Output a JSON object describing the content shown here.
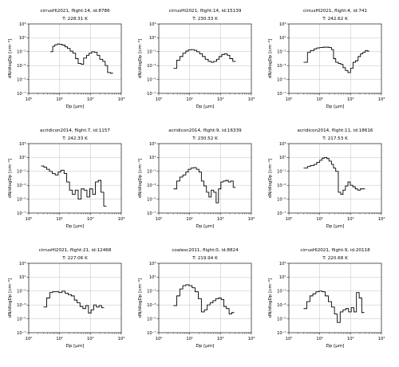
{
  "figure": {
    "panel_count": 9,
    "grid_layout": "3x3",
    "grid": true,
    "line_color": "#000000",
    "grid_color": "#b0b0b0"
  },
  "axes_common": {
    "xlabel": "Dp [μm]",
    "ylabel": "dN/dlogDp [cm⁻³]",
    "xscale": "log",
    "yscale": "log",
    "xlim": [
      1,
      1000
    ],
    "ylim": [
      1e-07,
      1000
    ],
    "xtick_labels": [
      "10⁰",
      "10¹",
      "10²",
      "10³"
    ],
    "ytick_labels": [
      "10⁻⁷",
      "10⁻⁵",
      "10⁻³",
      "10⁻¹",
      "10¹",
      "10³"
    ]
  },
  "chart_data": [
    {
      "type": "line",
      "title": "cirrusHl2021, flight:14, id:8786",
      "subtitle": "T: 228.31 K",
      "series": [
        {
          "values": [
            [
              5,
              0.1
            ],
            [
              6,
              0.6
            ],
            [
              7,
              1.0
            ],
            [
              8.5,
              1.3
            ],
            [
              10,
              1.2
            ],
            [
              12,
              0.9
            ],
            [
              15,
              0.5
            ],
            [
              18,
              0.3
            ],
            [
              22,
              0.12
            ],
            [
              27,
              0.06
            ],
            [
              33,
              0.01
            ],
            [
              40,
              0.002
            ],
            [
              50,
              0.0015
            ],
            [
              60,
              0.012
            ],
            [
              75,
              0.03
            ],
            [
              90,
              0.06
            ],
            [
              110,
              0.1
            ],
            [
              135,
              0.08
            ],
            [
              165,
              0.03
            ],
            [
              200,
              0.008
            ],
            [
              250,
              0.004
            ],
            [
              300,
              0.001
            ],
            [
              360,
              0.0001
            ],
            [
              440,
              8e-05
            ]
          ]
        }
      ]
    },
    {
      "type": "line",
      "title": "cirrusHl2021, flight:14, id:15139",
      "subtitle": "T: 230.33 K",
      "series": [
        {
          "values": [
            [
              3,
              0.0004
            ],
            [
              3.8,
              0.006
            ],
            [
              4.8,
              0.02
            ],
            [
              6,
              0.06
            ],
            [
              7.5,
              0.12
            ],
            [
              9,
              0.18
            ],
            [
              11,
              0.2
            ],
            [
              14,
              0.16
            ],
            [
              17,
              0.1
            ],
            [
              21,
              0.05
            ],
            [
              26,
              0.02
            ],
            [
              32,
              0.008
            ],
            [
              40,
              0.004
            ],
            [
              50,
              0.003
            ],
            [
              60,
              0.004
            ],
            [
              75,
              0.008
            ],
            [
              90,
              0.02
            ],
            [
              110,
              0.04
            ],
            [
              135,
              0.05
            ],
            [
              165,
              0.03
            ],
            [
              200,
              0.01
            ],
            [
              250,
              0.004
            ]
          ]
        }
      ]
    },
    {
      "type": "line",
      "title": "cirrusHl2021, flight:4, id:741",
      "subtitle": "T: 242.62 K",
      "series": [
        {
          "values": [
            [
              3,
              0.003
            ],
            [
              4,
              0.08
            ],
            [
              5,
              0.15
            ],
            [
              6.5,
              0.25
            ],
            [
              8,
              0.35
            ],
            [
              10,
              0.4
            ],
            [
              13,
              0.45
            ],
            [
              16,
              0.45
            ],
            [
              20,
              0.4
            ],
            [
              24,
              0.2
            ],
            [
              28,
              0.01
            ],
            [
              33,
              0.003
            ],
            [
              40,
              0.002
            ],
            [
              48,
              0.0015
            ],
            [
              57,
              0.0005
            ],
            [
              68,
              0.0002
            ],
            [
              82,
              0.0001
            ],
            [
              100,
              0.0004
            ],
            [
              120,
              0.003
            ],
            [
              145,
              0.005
            ],
            [
              175,
              0.02
            ],
            [
              210,
              0.05
            ],
            [
              250,
              0.08
            ],
            [
              300,
              0.15
            ],
            [
              350,
              0.12
            ]
          ]
        }
      ]
    },
    {
      "type": "line",
      "title": "acridicon2014, flight:7, id:1157",
      "subtitle": "T: 242.33 K",
      "series": [
        {
          "values": [
            [
              2.5,
              0.6
            ],
            [
              3.1,
              0.4
            ],
            [
              3.8,
              0.2
            ],
            [
              4.7,
              0.1
            ],
            [
              5.8,
              0.05
            ],
            [
              7.2,
              0.03
            ],
            [
              9,
              0.08
            ],
            [
              11,
              0.15
            ],
            [
              14,
              0.05
            ],
            [
              17,
              0.003
            ],
            [
              21,
              0.0002
            ],
            [
              26,
              5e-05
            ],
            [
              32,
              0.0002
            ],
            [
              40,
              1e-05
            ],
            [
              50,
              0.0003
            ],
            [
              62,
              0.0002
            ],
            [
              77,
              2e-05
            ],
            [
              95,
              0.0003
            ],
            [
              118,
              5e-05
            ],
            [
              145,
              0.003
            ],
            [
              180,
              0.005
            ],
            [
              220,
              0.0001
            ],
            [
              270,
              1e-06
            ]
          ]
        }
      ]
    },
    {
      "type": "line",
      "title": "acridicon2014, flight:9, id:16339",
      "subtitle": "T: 230.52 K",
      "series": [
        {
          "values": [
            [
              3,
              0.0003
            ],
            [
              3.8,
              0.004
            ],
            [
              4.8,
              0.015
            ],
            [
              6,
              0.03
            ],
            [
              7.5,
              0.08
            ],
            [
              9,
              0.2
            ],
            [
              11,
              0.3
            ],
            [
              13.5,
              0.35
            ],
            [
              16.5,
              0.2
            ],
            [
              20,
              0.08
            ],
            [
              24,
              0.004
            ],
            [
              29,
              0.0008
            ],
            [
              35,
              0.0001
            ],
            [
              42,
              2e-05
            ],
            [
              50,
              0.0002
            ],
            [
              60,
              0.0001
            ],
            [
              72,
              3e-06
            ],
            [
              86,
              0.0003
            ],
            [
              103,
              0.003
            ],
            [
              124,
              0.004
            ],
            [
              149,
              0.005
            ],
            [
              179,
              0.003
            ],
            [
              215,
              0.004
            ],
            [
              258,
              0.0005
            ]
          ]
        }
      ]
    },
    {
      "type": "line",
      "title": "acridicon2014, flight:11, id:18616",
      "subtitle": "T: 217.53 K",
      "series": [
        {
          "values": [
            [
              3,
              0.3
            ],
            [
              4,
              0.5
            ],
            [
              5,
              0.7
            ],
            [
              6.5,
              1.0
            ],
            [
              8,
              2.0
            ],
            [
              10,
              4.0
            ],
            [
              12,
              8.0
            ],
            [
              14,
              10.0
            ],
            [
              17,
              7.0
            ],
            [
              20,
              3.0
            ],
            [
              24,
              1.0
            ],
            [
              28,
              0.3
            ],
            [
              33,
              0.1
            ],
            [
              40,
              0.0001
            ],
            [
              48,
              5e-05
            ],
            [
              57,
              0.0002
            ],
            [
              68,
              0.0008
            ],
            [
              82,
              0.003
            ],
            [
              98,
              0.001
            ],
            [
              118,
              0.0006
            ],
            [
              142,
              0.0003
            ],
            [
              170,
              0.0002
            ],
            [
              205,
              0.0003
            ],
            [
              245,
              0.0003
            ]
          ]
        }
      ]
    },
    {
      "type": "line",
      "title": "cirrusHl2021, flight:21, id:12468",
      "subtitle": "T: 227.06 K",
      "series": [
        {
          "values": [
            [
              3,
              0.0005
            ],
            [
              3.8,
              0.01
            ],
            [
              4.8,
              0.06
            ],
            [
              6,
              0.08
            ],
            [
              7.5,
              0.08
            ],
            [
              9.5,
              0.06
            ],
            [
              12,
              0.1
            ],
            [
              15,
              0.05
            ],
            [
              19,
              0.03
            ],
            [
              24,
              0.02
            ],
            [
              30,
              0.005
            ],
            [
              37,
              0.002
            ],
            [
              46,
              0.0006
            ],
            [
              57,
              0.0003
            ],
            [
              70,
              0.0008
            ],
            [
              86,
              7e-05
            ],
            [
              105,
              0.0002
            ],
            [
              128,
              0.001
            ],
            [
              155,
              0.0005
            ],
            [
              190,
              0.0008
            ],
            [
              230,
              0.0004
            ]
          ]
        }
      ]
    },
    {
      "type": "line",
      "title": "coalesc2011, flight:0, id:8824",
      "subtitle": "T: 219.94 K",
      "series": [
        {
          "values": [
            [
              3,
              0.0008
            ],
            [
              3.8,
              0.02
            ],
            [
              4.8,
              0.2
            ],
            [
              6,
              0.6
            ],
            [
              7.5,
              0.8
            ],
            [
              9.5,
              0.6
            ],
            [
              12,
              0.3
            ],
            [
              15,
              0.08
            ],
            [
              19,
              0.008
            ],
            [
              24,
              0.0001
            ],
            [
              30,
              0.0002
            ],
            [
              37,
              0.001
            ],
            [
              46,
              0.002
            ],
            [
              57,
              0.004
            ],
            [
              70,
              0.008
            ],
            [
              86,
              0.01
            ],
            [
              105,
              0.006
            ],
            [
              128,
              0.0006
            ],
            [
              155,
              0.0003
            ],
            [
              190,
              5e-05
            ],
            [
              230,
              8e-05
            ]
          ]
        }
      ]
    },
    {
      "type": "line",
      "title": "cirrusHl2021, flight:9, id:20118",
      "subtitle": "T: 220.68 K",
      "series": [
        {
          "values": [
            [
              3,
              0.0003
            ],
            [
              3.8,
              0.003
            ],
            [
              4.8,
              0.02
            ],
            [
              6,
              0.04
            ],
            [
              7.5,
              0.08
            ],
            [
              9.5,
              0.1
            ],
            [
              12,
              0.08
            ],
            [
              15,
              0.02
            ],
            [
              19,
              0.003
            ],
            [
              24,
              0.0005
            ],
            [
              30,
              5e-05
            ],
            [
              37,
              3e-06
            ],
            [
              46,
              0.0001
            ],
            [
              57,
              0.0002
            ],
            [
              70,
              0.0003
            ],
            [
              86,
              0.0001
            ],
            [
              105,
              0.0004
            ],
            [
              128,
              0.0001
            ],
            [
              155,
              0.06
            ],
            [
              190,
              0.01
            ],
            [
              230,
              8e-05
            ]
          ]
        }
      ]
    }
  ]
}
